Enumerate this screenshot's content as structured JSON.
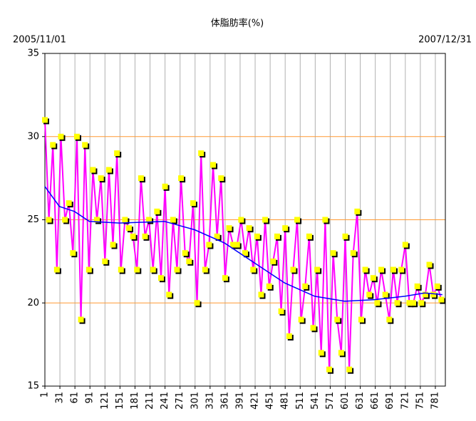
{
  "chart_data": {
    "type": "line",
    "title": "体脂肪率(%)",
    "annotations": [
      "2005/11/01",
      "2007/12/31"
    ],
    "xlim": [
      1,
      801
    ],
    "ylim": [
      15,
      35
    ],
    "xticks": [
      1,
      31,
      61,
      91,
      121,
      151,
      181,
      211,
      241,
      271,
      301,
      331,
      361,
      391,
      421,
      451,
      481,
      511,
      541,
      571,
      601,
      631,
      661,
      691,
      721,
      751,
      781
    ],
    "yticks": [
      15,
      20,
      25,
      30,
      35
    ],
    "grid": true,
    "ygrid_color": "#ff9933",
    "xgrid_color": "#b0b0b0",
    "series": [
      {
        "color": "#ff00ff",
        "marker_color": "#ffff00",
        "x": [
          1,
          9,
          17,
          25,
          33,
          41,
          49,
          57,
          65,
          73,
          81,
          89,
          97,
          105,
          113,
          121,
          129,
          137,
          145,
          153,
          161,
          169,
          177,
          185,
          193,
          201,
          209,
          217,
          225,
          233,
          241,
          249,
          257,
          265,
          273,
          281,
          289,
          297,
          305,
          313,
          321,
          329,
          337,
          345,
          353,
          361,
          369,
          377,
          385,
          393,
          401,
          409,
          417,
          425,
          433,
          441,
          449,
          457,
          465,
          473,
          481,
          489,
          497,
          505,
          513,
          521,
          529,
          537,
          545,
          553,
          561,
          569,
          577,
          585,
          593,
          601,
          609,
          617,
          625,
          633,
          641,
          649,
          657,
          665,
          673,
          681,
          689,
          697,
          705,
          713,
          721,
          729,
          737,
          745,
          753,
          761,
          769,
          777,
          785,
          793
        ],
        "values": [
          31,
          25,
          29.5,
          22,
          30,
          25,
          26,
          23,
          30,
          19,
          29.5,
          22,
          28,
          25,
          27.5,
          22.5,
          28,
          23.5,
          29,
          22,
          25,
          24.5,
          24,
          22,
          27.5,
          24,
          25,
          22,
          25.5,
          21.5,
          27,
          20.5,
          25,
          22,
          27.5,
          23,
          22.5,
          26,
          20,
          29,
          22,
          23.5,
          28.3,
          24,
          27.5,
          21.5,
          24.5,
          23.5,
          23.5,
          25,
          23,
          24.5,
          22,
          24,
          20.5,
          25,
          21,
          22.5,
          24,
          19.5,
          24.5,
          18,
          22,
          25,
          19,
          21,
          24,
          18.5,
          22,
          17,
          25,
          16,
          23,
          19,
          17,
          24,
          16,
          23,
          25.5,
          19,
          22,
          20.5,
          21.5,
          20,
          22,
          20.5,
          19,
          22,
          20,
          22,
          23.5,
          20,
          20,
          21,
          20,
          20.5,
          22.3,
          20.5,
          21,
          20.2
        ]
      },
      {
        "color": "#0000ff",
        "x": [
          1,
          30,
          60,
          90,
          150,
          240,
          300,
          360,
          420,
          480,
          540,
          600,
          660,
          720,
          760,
          795
        ],
        "values": [
          27,
          25.8,
          25.5,
          24.9,
          24.8,
          24.9,
          24.4,
          23.6,
          22.4,
          21.2,
          20.4,
          20.1,
          20.2,
          20.4,
          20.6,
          20.5
        ]
      }
    ]
  }
}
